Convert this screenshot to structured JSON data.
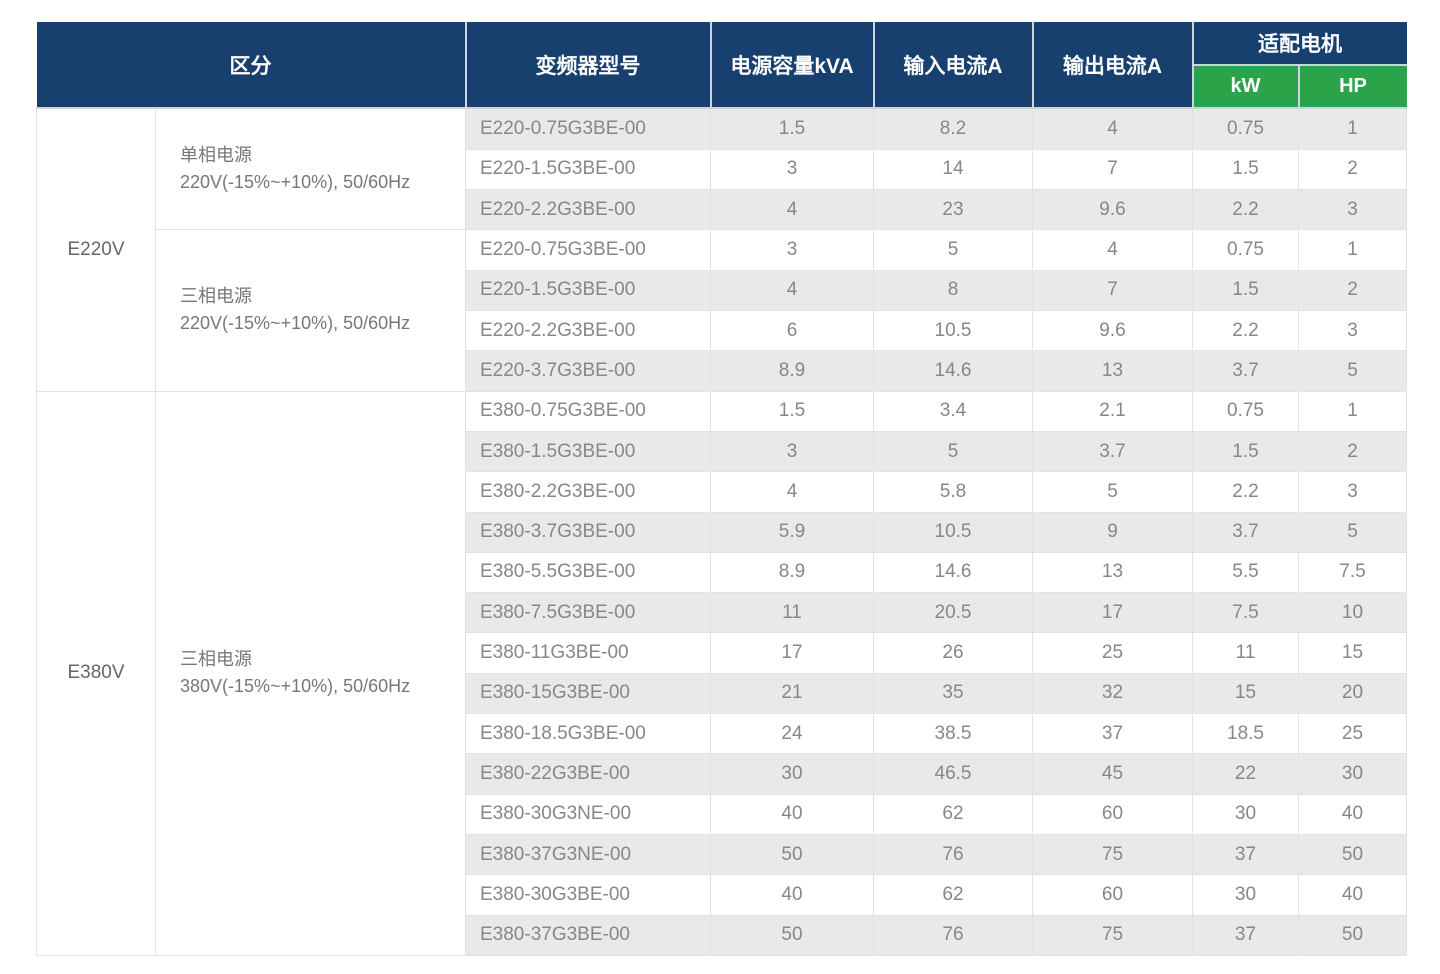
{
  "colors": {
    "header_navy": "#17406e",
    "header_green": "#2ba449",
    "stripe_gray": "#e9e9e9"
  },
  "table": {
    "header": {
      "col_category": "区分",
      "col_model": "变频器型号",
      "col_capacity": "电源容量kVA",
      "col_input_current": "输入电流A",
      "col_output_current": "输出电流A",
      "col_motor": "适配电机",
      "col_kw": "kW",
      "col_hp": "HP"
    },
    "sections": [
      {
        "group": "E220V",
        "subsections": [
          {
            "label_line1": "单相电源",
            "label_line2": "220V(-15%~+10%), 50/60Hz",
            "rows": [
              {
                "model": "E220-0.75G3BE-00",
                "capacity_kva": "1.5",
                "input_a": "8.2",
                "output_a": "4",
                "kw": "0.75",
                "hp": "1"
              },
              {
                "model": "E220-1.5G3BE-00",
                "capacity_kva": "3",
                "input_a": "14",
                "output_a": "7",
                "kw": "1.5",
                "hp": "2"
              },
              {
                "model": "E220-2.2G3BE-00",
                "capacity_kva": "4",
                "input_a": "23",
                "output_a": "9.6",
                "kw": "2.2",
                "hp": "3"
              }
            ]
          },
          {
            "label_line1": "三相电源",
            "label_line2": "220V(-15%~+10%), 50/60Hz",
            "rows": [
              {
                "model": "E220-0.75G3BE-00",
                "capacity_kva": "3",
                "input_a": "5",
                "output_a": "4",
                "kw": "0.75",
                "hp": "1"
              },
              {
                "model": "E220-1.5G3BE-00",
                "capacity_kva": "4",
                "input_a": "8",
                "output_a": "7",
                "kw": "1.5",
                "hp": "2"
              },
              {
                "model": "E220-2.2G3BE-00",
                "capacity_kva": "6",
                "input_a": "10.5",
                "output_a": "9.6",
                "kw": "2.2",
                "hp": "3"
              },
              {
                "model": "E220-3.7G3BE-00",
                "capacity_kva": "8.9",
                "input_a": "14.6",
                "output_a": "13",
                "kw": "3.7",
                "hp": "5"
              }
            ]
          }
        ]
      },
      {
        "group": "E380V",
        "subsections": [
          {
            "label_line1": "三相电源",
            "label_line2": "380V(-15%~+10%), 50/60Hz",
            "rows": [
              {
                "model": "E380-0.75G3BE-00",
                "capacity_kva": "1.5",
                "input_a": "3.4",
                "output_a": "2.1",
                "kw": "0.75",
                "hp": "1"
              },
              {
                "model": "E380-1.5G3BE-00",
                "capacity_kva": "3",
                "input_a": "5",
                "output_a": "3.7",
                "kw": "1.5",
                "hp": "2"
              },
              {
                "model": "E380-2.2G3BE-00",
                "capacity_kva": "4",
                "input_a": "5.8",
                "output_a": "5",
                "kw": "2.2",
                "hp": "3"
              },
              {
                "model": "E380-3.7G3BE-00",
                "capacity_kva": "5.9",
                "input_a": "10.5",
                "output_a": "9",
                "kw": "3.7",
                "hp": "5"
              },
              {
                "model": "E380-5.5G3BE-00",
                "capacity_kva": "8.9",
                "input_a": "14.6",
                "output_a": "13",
                "kw": "5.5",
                "hp": "7.5"
              },
              {
                "model": "E380-7.5G3BE-00",
                "capacity_kva": "11",
                "input_a": "20.5",
                "output_a": "17",
                "kw": "7.5",
                "hp": "10"
              },
              {
                "model": "E380-11G3BE-00",
                "capacity_kva": "17",
                "input_a": "26",
                "output_a": "25",
                "kw": "11",
                "hp": "15"
              },
              {
                "model": "E380-15G3BE-00",
                "capacity_kva": "21",
                "input_a": "35",
                "output_a": "32",
                "kw": "15",
                "hp": "20"
              },
              {
                "model": "E380-18.5G3BE-00",
                "capacity_kva": "24",
                "input_a": "38.5",
                "output_a": "37",
                "kw": "18.5",
                "hp": "25"
              },
              {
                "model": "E380-22G3BE-00",
                "capacity_kva": "30",
                "input_a": "46.5",
                "output_a": "45",
                "kw": "22",
                "hp": "30"
              },
              {
                "model": "E380-30G3NE-00",
                "capacity_kva": "40",
                "input_a": "62",
                "output_a": "60",
                "kw": "30",
                "hp": "40"
              },
              {
                "model": "E380-37G3NE-00",
                "capacity_kva": "50",
                "input_a": "76",
                "output_a": "75",
                "kw": "37",
                "hp": "50"
              },
              {
                "model": "E380-30G3BE-00",
                "capacity_kva": "40",
                "input_a": "62",
                "output_a": "60",
                "kw": "30",
                "hp": "40"
              },
              {
                "model": "E380-37G3BE-00",
                "capacity_kva": "50",
                "input_a": "76",
                "output_a": "75",
                "kw": "37",
                "hp": "50"
              }
            ]
          }
        ]
      }
    ]
  }
}
